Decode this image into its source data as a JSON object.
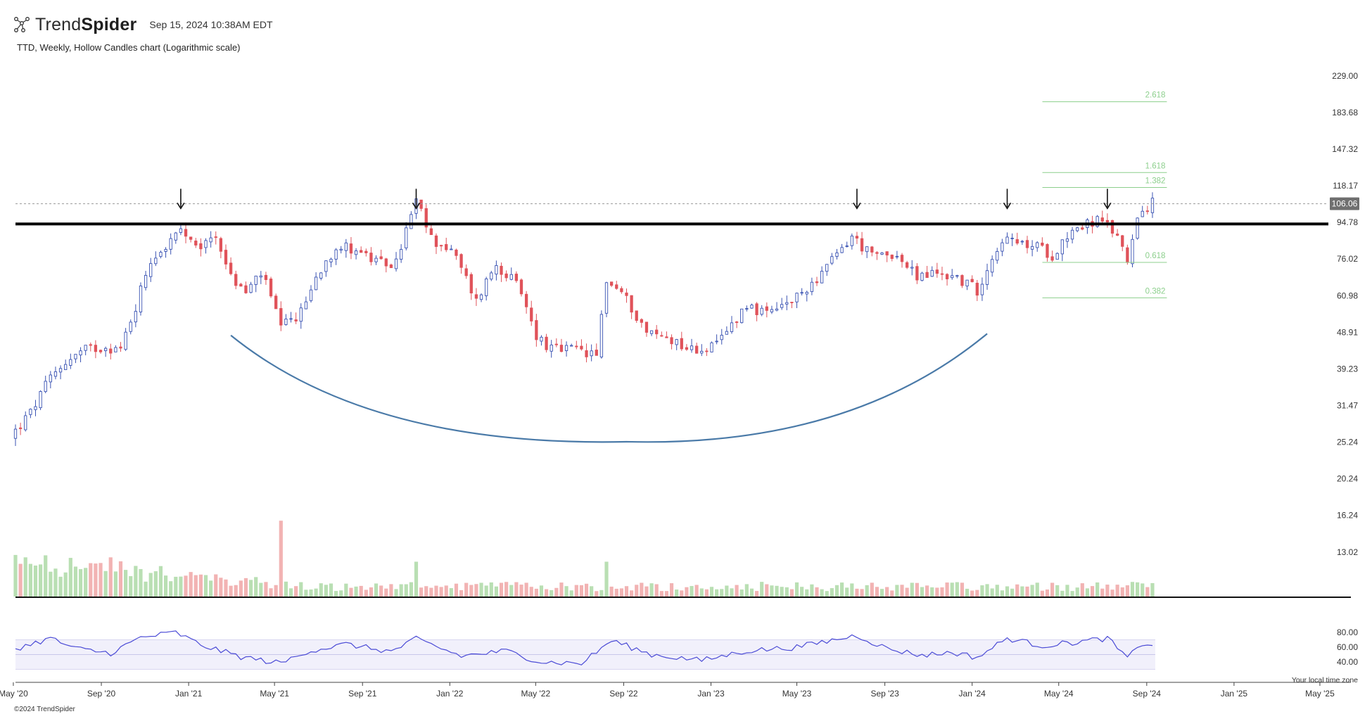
{
  "header": {
    "logo_light": "Trend",
    "logo_bold": "Spider",
    "date": "Sep 15, 2024 10:38AM EDT",
    "subtitle": "TTD, Weekly, Hollow Candles chart (Logarithmic scale)"
  },
  "footer": {
    "copyright": "©2024 TrendSpider",
    "timezone_note": "Your local time zone"
  },
  "colors": {
    "up": "#3a53b3",
    "down": "#e0535a",
    "vol_up": "#b9dfb3",
    "vol_down": "#f2b3b3",
    "rsi_line": "#4b4bd6",
    "rsi_band": "#f1f0fb",
    "fib": "#8ccf8c",
    "arc": "#4a7aa8"
  },
  "chart_data": {
    "type": "candlestick",
    "ticker": "TTD",
    "interval": "Weekly",
    "scale": "log",
    "last_price": "106.06",
    "y_ticks": [
      "229.00",
      "183.68",
      "147.32",
      "118.17",
      "94.78",
      "76.02",
      "60.98",
      "48.91",
      "39.23",
      "31.47",
      "25.24",
      "20.24",
      "16.24",
      "13.02"
    ],
    "x_ticks": [
      "May '20",
      "Sep '20",
      "Jan '21",
      "May '21",
      "Sep '21",
      "Jan '22",
      "May '22",
      "Sep '22",
      "Jan '23",
      "May '23",
      "Sep '23",
      "Jan '24",
      "May '24",
      "Sep '24",
      "Jan '25",
      "May '25"
    ],
    "x_range": [
      "2020-05-04",
      "2025-05-05"
    ],
    "y_range": [
      11.8,
      245
    ],
    "resistance_level": 93.9,
    "fib_levels": [
      {
        "label": "2.618",
        "value": 196
      },
      {
        "label": "1.618",
        "value": 128
      },
      {
        "label": "1.382",
        "value": 117
      },
      {
        "label": "0.618",
        "value": 74.5
      },
      {
        "label": "0.382",
        "value": 60.2
      }
    ],
    "fib_range": [
      "2024-02-19",
      "2024-10-07"
    ],
    "resistance_arrows": [
      "2020-12-21",
      "2021-11-15",
      "2023-07-24",
      "2024-02-19",
      "2024-07-08"
    ],
    "cup_arc": {
      "start": {
        "date": "2021-03-01",
        "price": 48
      },
      "bottom": {
        "date": "2022-09-05",
        "price": 25.3
      },
      "end": {
        "date": "2024-01-22",
        "price": 48.5
      }
    },
    "anchor_closes": [
      [
        "2020-05-04",
        27
      ],
      [
        "2020-05-25",
        30
      ],
      [
        "2020-06-22",
        37
      ],
      [
        "2020-07-13",
        41
      ],
      [
        "2020-08-10",
        44
      ],
      [
        "2020-09-07",
        45
      ],
      [
        "2020-09-28",
        44
      ],
      [
        "2020-10-19",
        57
      ],
      [
        "2020-11-09",
        76
      ],
      [
        "2020-11-30",
        82
      ],
      [
        "2020-12-21",
        90
      ],
      [
        "2021-01-11",
        80
      ],
      [
        "2021-02-08",
        88
      ],
      [
        "2021-03-01",
        68
      ],
      [
        "2021-03-22",
        62
      ],
      [
        "2021-04-12",
        70
      ],
      [
        "2021-05-10",
        50
      ],
      [
        "2021-06-07",
        55
      ],
      [
        "2021-07-05",
        72
      ],
      [
        "2021-07-26",
        82
      ],
      [
        "2021-08-23",
        81
      ],
      [
        "2021-09-20",
        74
      ],
      [
        "2021-10-18",
        74
      ],
      [
        "2021-11-15",
        107
      ],
      [
        "2021-12-06",
        86
      ],
      [
        "2022-01-03",
        80
      ],
      [
        "2022-02-07",
        59
      ],
      [
        "2022-03-07",
        74
      ],
      [
        "2022-04-04",
        65
      ],
      [
        "2022-05-02",
        48
      ],
      [
        "2022-05-23",
        44
      ],
      [
        "2022-06-27",
        44
      ],
      [
        "2022-07-25",
        42
      ],
      [
        "2022-08-08",
        67
      ],
      [
        "2022-08-29",
        62
      ],
      [
        "2022-10-03",
        49
      ],
      [
        "2022-11-07",
        47
      ],
      [
        "2022-12-05",
        44
      ],
      [
        "2023-01-09",
        45
      ],
      [
        "2023-02-20",
        58
      ],
      [
        "2023-03-20",
        54
      ],
      [
        "2023-05-01",
        60
      ],
      [
        "2023-06-12",
        72
      ],
      [
        "2023-07-17",
        87
      ],
      [
        "2023-08-14",
        77
      ],
      [
        "2023-09-11",
        79
      ],
      [
        "2023-10-16",
        68
      ],
      [
        "2023-11-13",
        70
      ],
      [
        "2023-12-11",
        68
      ],
      [
        "2024-01-08",
        63
      ],
      [
        "2024-02-12",
        86
      ],
      [
        "2024-03-04",
        83
      ],
      [
        "2024-04-01",
        82
      ],
      [
        "2024-04-22",
        78
      ],
      [
        "2024-05-20",
        91
      ],
      [
        "2024-06-24",
        96
      ],
      [
        "2024-07-22",
        88
      ],
      [
        "2024-08-05",
        75
      ],
      [
        "2024-08-19",
        100
      ],
      [
        "2024-09-09",
        106
      ]
    ],
    "anchor_rsi": [
      [
        "2020-05-04",
        58
      ],
      [
        "2020-06-22",
        72
      ],
      [
        "2020-07-27",
        58
      ],
      [
        "2020-09-14",
        52
      ],
      [
        "2020-10-26",
        73
      ],
      [
        "2020-12-14",
        80
      ],
      [
        "2021-01-18",
        63
      ],
      [
        "2021-03-15",
        47
      ],
      [
        "2021-05-10",
        38
      ],
      [
        "2021-06-14",
        54
      ],
      [
        "2021-08-09",
        64
      ],
      [
        "2021-10-11",
        54
      ],
      [
        "2021-11-15",
        71
      ],
      [
        "2022-01-17",
        48
      ],
      [
        "2022-03-21",
        55
      ],
      [
        "2022-05-09",
        40
      ],
      [
        "2022-07-04",
        38
      ],
      [
        "2022-08-15",
        69
      ],
      [
        "2022-10-10",
        50
      ],
      [
        "2022-12-19",
        42
      ],
      [
        "2023-02-20",
        55
      ],
      [
        "2023-05-01",
        60
      ],
      [
        "2023-07-24",
        76
      ],
      [
        "2023-09-04",
        58
      ],
      [
        "2023-10-23",
        49
      ],
      [
        "2023-12-04",
        53
      ],
      [
        "2024-01-08",
        46
      ],
      [
        "2024-02-19",
        72
      ],
      [
        "2024-04-08",
        62
      ],
      [
        "2024-05-27",
        67
      ],
      [
        "2024-07-08",
        72
      ],
      [
        "2024-08-05",
        45
      ],
      [
        "2024-08-26",
        65
      ],
      [
        "2024-09-09",
        64
      ]
    ],
    "rsi_ticks": [
      "80.00",
      "60.00",
      "40.00"
    ],
    "rsi_band": [
      30,
      70
    ]
  }
}
